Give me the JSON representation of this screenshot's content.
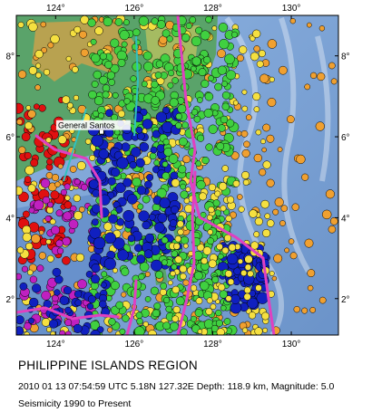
{
  "map": {
    "region": "Philippine Islands Region",
    "extent": {
      "lon_min": 123.0,
      "lon_max": 131.2,
      "lat_min": 1.1,
      "lat_max": 9.0
    },
    "lon_ticks": [
      {
        "value": 124,
        "label": "124°"
      },
      {
        "value": 126,
        "label": "126°"
      },
      {
        "value": 128,
        "label": "128°"
      },
      {
        "value": 130,
        "label": "130°"
      }
    ],
    "lat_ticks": [
      {
        "value": 8,
        "label": "8°"
      },
      {
        "value": 6,
        "label": "6°"
      },
      {
        "value": 4,
        "label": "4°"
      },
      {
        "value": 2,
        "label": "2°"
      }
    ],
    "city": {
      "name": "General Santos",
      "lon": 125.17,
      "lat": 6.12
    },
    "colors": {
      "ocean": "#7fa6d8",
      "land_low": "#5aa36a",
      "land_high": "#c9a24b",
      "plate_boundary": "#e040c0",
      "frame": "#000000",
      "depth_0_33km": "#e01010",
      "depth_33_70km": "#f0a030",
      "depth_70_150km": "#f5e040",
      "depth_150_300km": "#40d040",
      "depth_300_500km": "#1020c0",
      "depth_500_800km": "#c020c0"
    }
  },
  "caption": {
    "title": "PHILIPPINE ISLANDS REGION",
    "event": "2010 01 13 07:54:59 UTC 5.18N 127.32E Depth: 118.9 km, Magnitude: 5.0",
    "period": "Seismicity 1990 to Present"
  }
}
